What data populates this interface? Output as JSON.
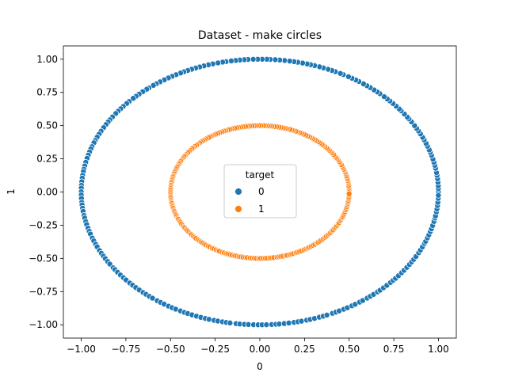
{
  "chart_data": {
    "type": "scatter",
    "title": "Dataset - make circles",
    "xlabel": "0",
    "ylabel": "1",
    "xlim": [
      -1.1,
      1.1
    ],
    "ylim": [
      -1.1,
      1.1
    ],
    "xticks": [
      -1.0,
      -0.75,
      -0.5,
      -0.25,
      0.0,
      0.25,
      0.5,
      0.75,
      1.0
    ],
    "xtick_labels": [
      "−1.00",
      "−0.75",
      "−0.50",
      "−0.25",
      "0.00",
      "0.25",
      "0.50",
      "0.75",
      "1.00"
    ],
    "yticks": [
      -1.0,
      -0.75,
      -0.5,
      -0.25,
      0.0,
      0.25,
      0.5,
      0.75,
      1.0
    ],
    "ytick_labels": [
      "−1.00",
      "−0.75",
      "−0.50",
      "−0.25",
      "0.00",
      "0.25",
      "0.50",
      "0.75",
      "1.00"
    ],
    "grid": false,
    "legend": {
      "title": "target",
      "placement": "center",
      "entries": [
        "0",
        "1"
      ]
    },
    "series": [
      {
        "name": "0",
        "color": "#1f77b4",
        "shape": "circle",
        "radius": 1.0,
        "n_points": 250
      },
      {
        "name": "1",
        "color": "#ff7f0e",
        "shape": "circle",
        "radius": 0.5,
        "n_points": 250
      }
    ]
  }
}
